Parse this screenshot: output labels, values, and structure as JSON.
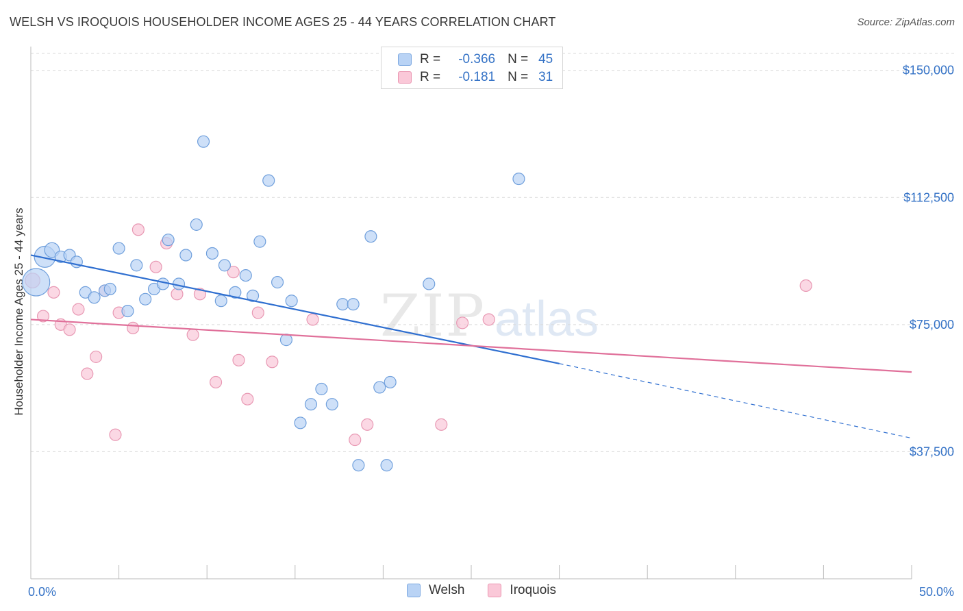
{
  "title": "WELSH VS IROQUOIS HOUSEHOLDER INCOME AGES 25 - 44 YEARS CORRELATION CHART",
  "source": "Source: ZipAtlas.com",
  "watermark": {
    "zip": "ZIP",
    "atlas": "atlas"
  },
  "stats": [
    {
      "series": "Welsh",
      "r_label": "R =",
      "r_value": "-0.366",
      "n_label": "N =",
      "n_value": "45",
      "fill": "#b9d3f5",
      "stroke": "#7ba7e0"
    },
    {
      "series": "Iroquois",
      "r_label": "R =",
      "r_value": "-0.181",
      "n_label": "N =",
      "n_value": "31",
      "fill": "#fac8d8",
      "stroke": "#ea94b0"
    }
  ],
  "legend": [
    {
      "label": "Welsh",
      "fill": "#b9d3f5",
      "stroke": "#7ba7e0"
    },
    {
      "label": "Iroquois",
      "fill": "#fac8d8",
      "stroke": "#ea94b0"
    }
  ],
  "colors": {
    "welsh_point_fill": "#b9d3f5",
    "welsh_point_stroke": "#6f9fdc",
    "welsh_line": "#2f6fd0",
    "iroquois_point_fill": "#fac8d8",
    "iroquois_point_stroke": "#e898b3",
    "iroquois_line": "#e0709a",
    "tick_label": "#3472c6",
    "grid": "#d9d9d9"
  },
  "chart_data": {
    "type": "scatter",
    "title": "WELSH VS IROQUOIS HOUSEHOLDER INCOME AGES 25 - 44 YEARS CORRELATION CHART",
    "xlabel": "",
    "ylabel": "Householder Income Ages 25 - 44 years",
    "xlim": [
      0,
      50
    ],
    "ylim": [
      0,
      155000
    ],
    "x_tick_labels": [
      {
        "value": 0,
        "label": "0.0%"
      },
      {
        "value": 50,
        "label": "50.0%"
      }
    ],
    "x_minor_ticks": [
      0,
      5,
      10,
      15,
      20,
      25,
      30,
      35,
      40,
      45,
      50
    ],
    "y_ticks": [
      {
        "value": 37500,
        "label": "$37,500"
      },
      {
        "value": 75000,
        "label": "$75,000"
      },
      {
        "value": 112500,
        "label": "$112,500"
      },
      {
        "value": 150000,
        "label": "$150,000"
      }
    ],
    "grid": "horizontal dashed",
    "legend_position": "bottom-center",
    "series": [
      {
        "name": "Welsh",
        "points": [
          [
            0.3,
            87500,
            26
          ],
          [
            0.8,
            95000,
            20
          ],
          [
            1.2,
            97000,
            14
          ],
          [
            1.7,
            95000,
            11
          ],
          [
            2.2,
            95500,
            11
          ],
          [
            2.6,
            93500,
            11
          ],
          [
            3.1,
            84500,
            11
          ],
          [
            3.6,
            83000,
            11
          ],
          [
            4.2,
            85000,
            11
          ],
          [
            4.5,
            85500,
            11
          ],
          [
            5.0,
            97500,
            11
          ],
          [
            5.5,
            79000,
            11
          ],
          [
            6.0,
            92500,
            11
          ],
          [
            6.5,
            82500,
            11
          ],
          [
            7.0,
            85500,
            11
          ],
          [
            7.5,
            87000,
            11
          ],
          [
            7.8,
            100000,
            11
          ],
          [
            8.4,
            87000,
            11
          ],
          [
            8.8,
            95500,
            11
          ],
          [
            9.4,
            104500,
            11
          ],
          [
            9.8,
            129000,
            11
          ],
          [
            10.3,
            96000,
            11
          ],
          [
            10.8,
            82000,
            11
          ],
          [
            11.0,
            92500,
            11
          ],
          [
            11.6,
            84500,
            11
          ],
          [
            12.2,
            89500,
            11
          ],
          [
            12.6,
            83500,
            11
          ],
          [
            13.0,
            99500,
            11
          ],
          [
            13.5,
            117500,
            11
          ],
          [
            14.0,
            87500,
            11
          ],
          [
            14.5,
            70500,
            11
          ],
          [
            14.8,
            82000,
            11
          ],
          [
            15.3,
            46000,
            11
          ],
          [
            15.9,
            51500,
            11
          ],
          [
            16.5,
            56000,
            11
          ],
          [
            17.1,
            51500,
            11
          ],
          [
            17.7,
            81000,
            11
          ],
          [
            18.3,
            81000,
            11
          ],
          [
            18.6,
            33500,
            11
          ],
          [
            19.3,
            101000,
            11
          ],
          [
            19.8,
            56500,
            11
          ],
          [
            20.2,
            33500,
            11
          ],
          [
            20.4,
            58000,
            11
          ],
          [
            22.6,
            87000,
            11
          ],
          [
            27.7,
            118000,
            11
          ]
        ]
      },
      {
        "name": "Iroquois",
        "points": [
          [
            0.1,
            88000,
            14
          ],
          [
            0.7,
            77500,
            11
          ],
          [
            1.3,
            84500,
            11
          ],
          [
            1.7,
            75000,
            11
          ],
          [
            2.2,
            73500,
            11
          ],
          [
            2.7,
            79500,
            11
          ],
          [
            3.2,
            60500,
            11
          ],
          [
            3.7,
            65500,
            11
          ],
          [
            4.2,
            85000,
            11
          ],
          [
            4.8,
            42500,
            11
          ],
          [
            5.0,
            78500,
            11
          ],
          [
            5.8,
            74000,
            11
          ],
          [
            6.1,
            103000,
            11
          ],
          [
            7.1,
            92000,
            11
          ],
          [
            7.7,
            99000,
            11
          ],
          [
            8.3,
            84000,
            11
          ],
          [
            9.2,
            72000,
            11
          ],
          [
            9.6,
            84000,
            11
          ],
          [
            10.5,
            58000,
            11
          ],
          [
            11.5,
            90500,
            11
          ],
          [
            11.8,
            64500,
            11
          ],
          [
            12.3,
            53000,
            11
          ],
          [
            12.9,
            78500,
            11
          ],
          [
            13.7,
            64000,
            11
          ],
          [
            16.0,
            76500,
            11
          ],
          [
            18.4,
            41000,
            11
          ],
          [
            19.1,
            45500,
            11
          ],
          [
            23.3,
            45500,
            11
          ],
          [
            24.5,
            75500,
            11
          ],
          [
            26.0,
            76500,
            11
          ],
          [
            44.0,
            86500,
            11
          ]
        ]
      }
    ],
    "trendlines": [
      {
        "series": "Welsh",
        "solid": [
          [
            0,
            95500
          ],
          [
            30,
            63500
          ]
        ],
        "dashed": [
          [
            30,
            63500
          ],
          [
            50,
            41500
          ]
        ]
      },
      {
        "series": "Iroquois",
        "solid": [
          [
            0,
            76500
          ],
          [
            50,
            61000
          ]
        ]
      }
    ]
  }
}
